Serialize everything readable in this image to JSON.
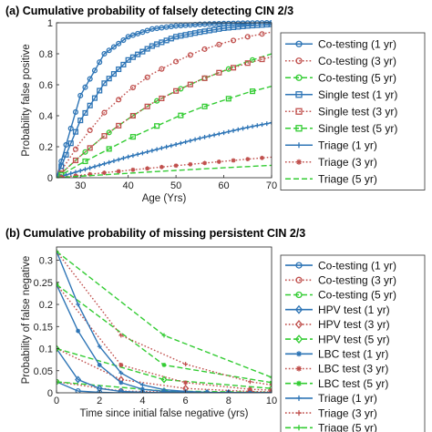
{
  "chart_data": [
    {
      "type": "line",
      "title": "(a) Cumulative probability of falsely detecting CIN 2/3",
      "xlabel": "Age (Yrs)",
      "ylabel": "Probability false positive",
      "xlim": [
        25,
        70
      ],
      "ylim": [
        0,
        1
      ],
      "xticks": [
        30,
        40,
        50,
        60,
        70
      ],
      "yticks": [
        0,
        0.2,
        0.4,
        0.6,
        0.8,
        1
      ],
      "grid": false,
      "legend_position": "right-outside",
      "series": [
        {
          "name": "Co-testing (1 yr)",
          "color": "#2E75B6",
          "style": "solid",
          "marker": "circle",
          "every": 1,
          "x": [
            25,
            30,
            35,
            40,
            45,
            50,
            55,
            60,
            65,
            70
          ],
          "y": [
            0,
            0.53,
            0.8,
            0.91,
            0.96,
            0.98,
            0.99,
            0.995,
            0.998,
            1.0
          ]
        },
        {
          "name": "Co-testing (3 yr)",
          "color": "#C0504D",
          "style": "dotted",
          "marker": "circle",
          "every": 3,
          "x": [
            25,
            30,
            35,
            40,
            45,
            50,
            55,
            60,
            65,
            70
          ],
          "y": [
            0,
            0.23,
            0.42,
            0.56,
            0.67,
            0.75,
            0.82,
            0.87,
            0.91,
            0.94
          ]
        },
        {
          "name": "Co-testing (5 yr)",
          "color": "#33CC33",
          "style": "dashed",
          "marker": "circle",
          "every": 5,
          "x": [
            25,
            30,
            35,
            40,
            45,
            50,
            55,
            60,
            65,
            70
          ],
          "y": [
            0,
            0.14,
            0.27,
            0.38,
            0.48,
            0.56,
            0.63,
            0.69,
            0.75,
            0.8
          ]
        },
        {
          "name": "Single test (1 yr)",
          "color": "#2E75B6",
          "style": "solid",
          "marker": "square",
          "every": 1,
          "x": [
            25,
            30,
            35,
            40,
            45,
            50,
            55,
            60,
            65,
            70
          ],
          "y": [
            0,
            0.37,
            0.61,
            0.76,
            0.85,
            0.91,
            0.94,
            0.965,
            0.98,
            0.99
          ]
        },
        {
          "name": "Single test (3 yr)",
          "color": "#C0504D",
          "style": "dotted",
          "marker": "square",
          "every": 3,
          "x": [
            25,
            30,
            35,
            40,
            45,
            50,
            55,
            60,
            65,
            70
          ],
          "y": [
            0,
            0.14,
            0.27,
            0.38,
            0.48,
            0.56,
            0.63,
            0.69,
            0.74,
            0.78
          ]
        },
        {
          "name": "Single test (5 yr)",
          "color": "#33CC33",
          "style": "dashed",
          "marker": "square",
          "every": 5,
          "x": [
            25,
            30,
            35,
            40,
            45,
            50,
            55,
            60,
            65,
            70
          ],
          "y": [
            0,
            0.09,
            0.17,
            0.25,
            0.32,
            0.39,
            0.45,
            0.5,
            0.55,
            0.59
          ]
        },
        {
          "name": "Triage (1 yr)",
          "color": "#2E75B6",
          "style": "solid",
          "marker": "plus",
          "every": 1,
          "x": [
            25,
            30,
            35,
            40,
            45,
            50,
            55,
            60,
            65,
            70
          ],
          "y": [
            0,
            0.045,
            0.09,
            0.135,
            0.175,
            0.215,
            0.255,
            0.29,
            0.325,
            0.355
          ]
        },
        {
          "name": "Triage (3 yr)",
          "color": "#C0504D",
          "style": "dotted",
          "marker": "star",
          "every": 3,
          "x": [
            25,
            30,
            35,
            40,
            45,
            50,
            55,
            60,
            65,
            70
          ],
          "y": [
            0,
            0.016,
            0.032,
            0.048,
            0.063,
            0.078,
            0.092,
            0.106,
            0.12,
            0.133
          ]
        },
        {
          "name": "Triage (5 yr)",
          "color": "#33CC33",
          "style": "dashed",
          "marker": "none",
          "every": 5,
          "x": [
            25,
            30,
            35,
            40,
            45,
            50,
            55,
            60,
            65,
            70
          ],
          "y": [
            0,
            0.01,
            0.019,
            0.029,
            0.038,
            0.047,
            0.056,
            0.064,
            0.072,
            0.08
          ]
        }
      ]
    },
    {
      "type": "line",
      "title": "(b) Cumulative probability of missing persistent CIN 2/3",
      "xlabel": "Time since initial false negative (yrs)",
      "ylabel": "Probability of false negative",
      "xlim": [
        0,
        10
      ],
      "ylim": [
        0,
        0.33
      ],
      "xticks": [
        0,
        2,
        4,
        6,
        8,
        10
      ],
      "yticks": [
        0,
        0.05,
        0.1,
        0.15,
        0.2,
        0.25,
        0.3
      ],
      "grid": false,
      "legend_position": "right-outside",
      "series": [
        {
          "name": "Co-testing (1 yr)",
          "color": "#2E75B6",
          "style": "solid",
          "marker": "circle",
          "x": [
            0,
            1,
            2,
            3,
            4,
            5,
            6,
            7,
            8,
            9,
            10
          ],
          "y": [
            0.025,
            0.004,
            0.001,
            0,
            0,
            0,
            0,
            0,
            0,
            0,
            0
          ]
        },
        {
          "name": "Co-testing (3 yr)",
          "color": "#C0504D",
          "style": "dotted",
          "marker": "circle",
          "x": [
            0,
            3,
            6,
            9,
            10
          ],
          "y": [
            0.025,
            0.004,
            0.001,
            0,
            0
          ]
        },
        {
          "name": "Co-testing (5 yr)",
          "color": "#33CC33",
          "style": "dashed",
          "marker": "circle",
          "x": [
            0,
            5,
            10
          ],
          "y": [
            0.025,
            0.004,
            0.001
          ]
        },
        {
          "name": "HPV test (1 yr)",
          "color": "#2E75B6",
          "style": "solid",
          "marker": "diamond",
          "x": [
            0,
            1,
            2,
            3,
            4,
            5,
            6,
            7,
            8,
            9,
            10
          ],
          "y": [
            0.1,
            0.03,
            0.01,
            0.003,
            0.001,
            0,
            0,
            0,
            0,
            0,
            0
          ]
        },
        {
          "name": "HPV test (3 yr)",
          "color": "#C0504D",
          "style": "dotted",
          "marker": "diamond",
          "x": [
            0,
            3,
            6,
            9,
            10
          ],
          "y": [
            0.1,
            0.03,
            0.01,
            0.003,
            0.002
          ]
        },
        {
          "name": "HPV test (5 yr)",
          "color": "#33CC33",
          "style": "dashed",
          "marker": "diamond",
          "x": [
            0,
            5,
            10
          ],
          "y": [
            0.1,
            0.03,
            0.01
          ]
        },
        {
          "name": "LBC test (1 yr)",
          "color": "#2E75B6",
          "style": "solid",
          "marker": "star",
          "x": [
            0,
            1,
            2,
            3,
            4,
            5,
            6,
            7,
            8,
            9,
            10
          ],
          "y": [
            0.245,
            0.14,
            0.063,
            0.023,
            0.008,
            0.003,
            0.001,
            0,
            0,
            0,
            0
          ]
        },
        {
          "name": "LBC test (3 yr)",
          "color": "#C0504D",
          "style": "dotted",
          "marker": "star",
          "x": [
            0,
            3,
            6,
            9,
            10
          ],
          "y": [
            0.245,
            0.063,
            0.023,
            0.008,
            0.006
          ]
        },
        {
          "name": "LBC test (5 yr)",
          "color": "#33CC33",
          "style": "dashed",
          "marker": "star",
          "x": [
            0,
            5,
            10
          ],
          "y": [
            0.245,
            0.063,
            0.023
          ]
        },
        {
          "name": "Triage (1 yr)",
          "color": "#2E75B6",
          "style": "solid",
          "marker": "plus",
          "x": [
            0,
            1,
            2,
            3,
            4,
            5,
            6,
            7,
            8,
            9,
            10
          ],
          "y": [
            0.32,
            0.2,
            0.105,
            0.045,
            0.018,
            0.007,
            0.003,
            0.001,
            0,
            0,
            0
          ]
        },
        {
          "name": "Triage (3 yr)",
          "color": "#C0504D",
          "style": "dotted",
          "marker": "plus",
          "x": [
            0,
            3,
            6,
            9,
            10
          ],
          "y": [
            0.32,
            0.13,
            0.065,
            0.025,
            0.018
          ]
        },
        {
          "name": "Triage (5 yr)",
          "color": "#33CC33",
          "style": "dashed",
          "marker": "plus",
          "x": [
            0,
            5,
            10
          ],
          "y": [
            0.32,
            0.13,
            0.035
          ]
        }
      ]
    }
  ]
}
